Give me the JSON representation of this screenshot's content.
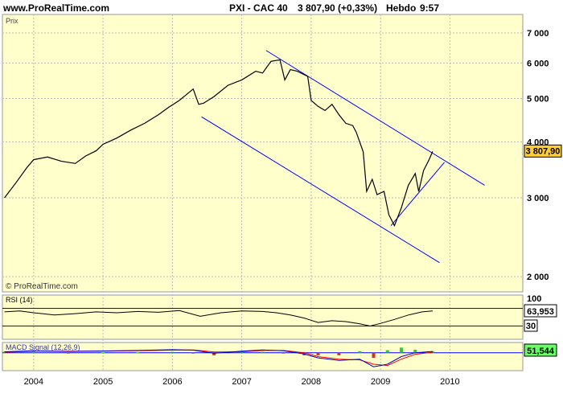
{
  "header": {
    "site": "www.ProRealTime.com",
    "instrument": "PXI - CAC 40",
    "last_change": "3 807,90 (+0,33%)",
    "period": "Hebdo",
    "time": "9:57"
  },
  "colors": {
    "panel_bg": "#FFFFCC",
    "price_line": "#000000",
    "channel": "#0000FF",
    "label_bg": "#FFCC33",
    "macd_signal": "#FF0000",
    "macd_line": "#0000CC",
    "hist_pos": "#33CC33",
    "hist_neg": "#CC3333"
  },
  "chart_data": [
    {
      "type": "line",
      "panel": "price",
      "title": "Prix",
      "watermark": "© ProRealTime.com",
      "yscale": "log",
      "ylim": [
        1850,
        7700
      ],
      "xlim": [
        2003.55,
        2011.05
      ],
      "y_ticks": [
        2000,
        3000,
        4000,
        5000,
        6000,
        7000
      ],
      "y_tick_labels": [
        "2 000",
        "3 000",
        "4 000",
        "5 000",
        "6 000",
        "7 000"
      ],
      "x_ticks": [
        2004,
        2005,
        2006,
        2007,
        2008,
        2009,
        2010
      ],
      "x_tick_labels": [
        "2004",
        "2005",
        "2006",
        "2007",
        "2008",
        "2009",
        "2010"
      ],
      "last_value_label": "3 807,90",
      "last_value": 3807.9,
      "series": [
        {
          "x": [
            2003.58,
            2003.75,
            2003.9,
            2004.0,
            2004.2,
            2004.4,
            2004.6,
            2004.75,
            2004.9,
            2005.0,
            2005.2,
            2005.4,
            2005.6,
            2005.8,
            2005.95,
            2006.1,
            2006.3,
            2006.38,
            2006.45,
            2006.6,
            2006.8,
            2007.0,
            2007.2,
            2007.3,
            2007.42,
            2007.55,
            2007.62,
            2007.7,
            2007.8,
            2007.95,
            2008.0,
            2008.1,
            2008.2,
            2008.3,
            2008.4,
            2008.5,
            2008.6,
            2008.65,
            2008.75,
            2008.8,
            2008.88,
            2008.95,
            2009.05,
            2009.12,
            2009.2,
            2009.3,
            2009.4,
            2009.5,
            2009.55,
            2009.62,
            2009.7,
            2009.75
          ],
          "y": [
            3000,
            3250,
            3500,
            3650,
            3700,
            3620,
            3580,
            3720,
            3820,
            3950,
            4080,
            4250,
            4400,
            4600,
            4780,
            4950,
            5250,
            4850,
            4880,
            5050,
            5350,
            5500,
            5750,
            5700,
            6050,
            6100,
            5500,
            5800,
            5750,
            5600,
            4950,
            4800,
            4700,
            4850,
            4600,
            4400,
            4350,
            4200,
            3800,
            3100,
            3300,
            3050,
            3100,
            2750,
            2600,
            2850,
            3200,
            3400,
            3100,
            3450,
            3650,
            3807.9
          ]
        }
      ],
      "channel_lines": [
        {
          "x": [
            2007.35,
            2010.5
          ],
          "y": [
            6400,
            3200
          ]
        },
        {
          "x": [
            2006.42,
            2009.85
          ],
          "y": [
            4550,
            2150
          ]
        },
        {
          "x": [
            2009.15,
            2009.92
          ],
          "y": [
            2600,
            3600
          ]
        }
      ]
    },
    {
      "type": "line",
      "panel": "rsi",
      "title": "RSI (14)",
      "ylim": [
        0,
        100
      ],
      "y_ticks": [
        100
      ],
      "y_tick_labels": [
        "100"
      ],
      "levels": [
        30,
        70
      ],
      "level_labels": [
        "30"
      ],
      "last_value_label": "63,953",
      "series": [
        {
          "name": "RSI (14)",
          "x": [
            2003.58,
            2003.8,
            2004.0,
            2004.3,
            2004.6,
            2004.9,
            2005.2,
            2005.5,
            2005.8,
            2006.1,
            2006.4,
            2006.7,
            2007.0,
            2007.3,
            2007.5,
            2007.7,
            2007.9,
            2008.1,
            2008.3,
            2008.5,
            2008.7,
            2008.85,
            2009.0,
            2009.2,
            2009.4,
            2009.6,
            2009.75
          ],
          "y": [
            62,
            64,
            60,
            55,
            58,
            62,
            60,
            63,
            61,
            65,
            52,
            60,
            64,
            63,
            60,
            55,
            48,
            38,
            42,
            40,
            35,
            30,
            36,
            45,
            55,
            62,
            64
          ]
        }
      ]
    },
    {
      "type": "line",
      "panel": "macd",
      "title": "MACD Signal (12,26,9)",
      "ylim": [
        -700,
        400
      ],
      "last_value_label": "51,544",
      "series": [
        {
          "name": "MACD",
          "x": [
            2003.58,
            2004.0,
            2004.5,
            2005.0,
            2005.5,
            2006.0,
            2006.3,
            2006.6,
            2007.0,
            2007.3,
            2007.6,
            2007.9,
            2008.1,
            2008.4,
            2008.7,
            2008.9,
            2009.1,
            2009.3,
            2009.5,
            2009.75
          ],
          "y": [
            40,
            80,
            50,
            70,
            90,
            120,
            100,
            -20,
            60,
            110,
            80,
            -50,
            -200,
            -300,
            -250,
            -550,
            -450,
            -150,
            0,
            51.544
          ]
        },
        {
          "name": "Signal",
          "x": [
            2003.58,
            2004.0,
            2004.5,
            2005.0,
            2005.5,
            2006.0,
            2006.3,
            2006.6,
            2007.0,
            2007.3,
            2007.6,
            2007.9,
            2008.1,
            2008.4,
            2008.7,
            2008.9,
            2009.1,
            2009.3,
            2009.5,
            2009.75
          ],
          "y": [
            20,
            60,
            60,
            60,
            80,
            100,
            110,
            30,
            40,
            90,
            90,
            0,
            -150,
            -250,
            -280,
            -450,
            -500,
            -250,
            -60,
            20
          ]
        }
      ]
    }
  ]
}
